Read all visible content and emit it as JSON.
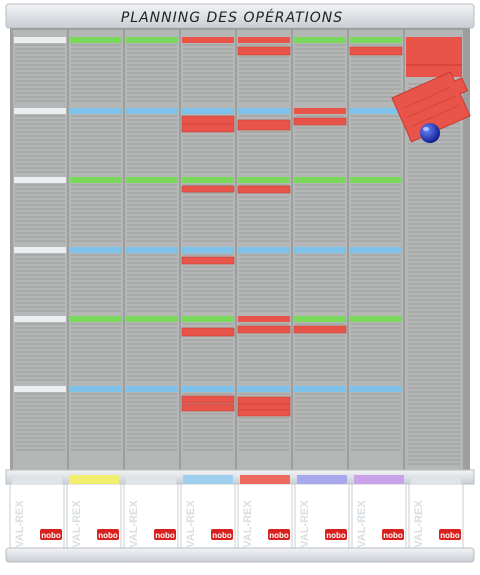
{
  "board": {
    "title": "PLANNING DES OPÉRATIONS",
    "tray_brand": "VAL-REX",
    "logo_text": "nobo"
  },
  "colors": {
    "frame": "#d9dde2",
    "panel": "#a3a6a5",
    "slot": "#b4b7b5",
    "red_card": "#e8544a",
    "green_card": "#7ad85a",
    "blue_card": "#7cc2ea",
    "white_card": "#e9eef0",
    "magnet": "#1428b0",
    "logo_red": "#d8211e"
  },
  "trays": [
    {
      "label": "nobo",
      "tab_color": "#dfe4e8"
    },
    {
      "label": "nobo",
      "tab_color": "#f2ee6e"
    },
    {
      "label": "nobo",
      "tab_color": "#dfe4e8"
    },
    {
      "label": "nobo",
      "tab_color": "#9fcfee"
    },
    {
      "label": "nobo",
      "tab_color": "#ec6a5e"
    },
    {
      "label": "nobo",
      "tab_color": "#a7a8ee"
    },
    {
      "label": "nobo",
      "tab_color": "#c9a2ea"
    },
    {
      "label": "nobo",
      "tab_color": "#dfe4e8"
    }
  ],
  "section_colors": [
    "green_card",
    "blue_card",
    "green_card",
    "blue_card",
    "green_card",
    "blue_card"
  ],
  "column_headers": [
    [
      "white_card",
      "white_card",
      "white_card",
      "white_card",
      "white_card",
      "white_card"
    ],
    [
      "green_card",
      "blue_card",
      "green_card",
      "blue_card",
      "green_card",
      "blue_card"
    ],
    [
      "green_card",
      "blue_card",
      "green_card",
      "blue_card",
      "green_card",
      "blue_card"
    ],
    [
      "red_card",
      "blue_card",
      "green_card",
      "blue_card",
      "green_card",
      "blue_card"
    ],
    [
      "red_card",
      "blue_card",
      "green_card",
      "blue_card",
      "red_card",
      "blue_card"
    ],
    [
      "green_card",
      "red_card",
      "green_card",
      "blue_card",
      "green_card",
      "blue_card"
    ],
    [
      "green_card",
      "blue_card",
      "green_card",
      "blue_card",
      "green_card",
      "blue_card"
    ]
  ]
}
